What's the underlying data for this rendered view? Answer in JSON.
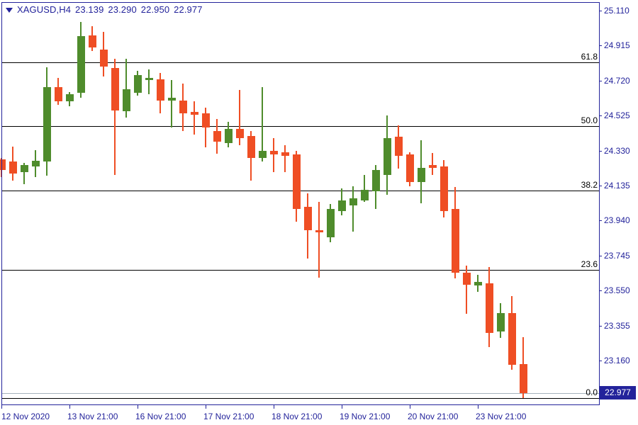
{
  "header": {
    "symbol": "XAGUSD,H4",
    "open": "23.139",
    "high": "23.290",
    "low": "22.950",
    "close": "22.977"
  },
  "colors": {
    "background": "#FFFFFF",
    "bull": "#4F8C2C",
    "bear": "#EF4E24",
    "axis": "#23239B",
    "fib_line": "#000000",
    "bid_line": "#A6B2BC",
    "tag_bg": "#23239B",
    "tag_text": "#FFFFFF"
  },
  "chart_data": {
    "type": "candlestick",
    "symbol": "XAGUSD",
    "timeframe": "H4",
    "title": "XAGUSD,H4 23.139 23.290 22.950 22.977",
    "grid": false,
    "legend_position": "none",
    "y_axis": {
      "side": "right",
      "tick_labels": [
        "25.110",
        "24.915",
        "24.720",
        "24.525",
        "24.330",
        "24.135",
        "23.940",
        "23.745",
        "23.550",
        "23.355",
        "23.160"
      ],
      "range_shown": [
        22.85,
        25.17
      ]
    },
    "x_axis": {
      "tick_labels": [
        "12 Nov 2020",
        "13 Nov 21:00",
        "16 Nov 21:00",
        "17 Nov 21:00",
        "18 Nov 21:00",
        "19 Nov 21:00",
        "20 Nov 21:00",
        "23 Nov 21:00"
      ],
      "ticks": [
        {
          "label": "12 Nov 2020",
          "candle_index": 0
        },
        {
          "label": "13 Nov 21:00",
          "candle_index": 6
        },
        {
          "label": "16 Nov 21:00",
          "candle_index": 12
        },
        {
          "label": "17 Nov 21:00",
          "candle_index": 18
        },
        {
          "label": "18 Nov 21:00",
          "candle_index": 24
        },
        {
          "label": "19 Nov 21:00",
          "candle_index": 30
        },
        {
          "label": "20 Nov 21:00",
          "candle_index": 36
        },
        {
          "label": "23 Nov 21:00",
          "candle_index": 42
        }
      ]
    },
    "fibonacci_levels": [
      {
        "label": "61.8",
        "price": 24.823
      },
      {
        "label": "50.0",
        "price": 24.465
      },
      {
        "label": "38.2",
        "price": 24.108
      },
      {
        "label": "23.6",
        "price": 23.665
      },
      {
        "label": "0.0",
        "price": 22.95
      }
    ],
    "current_price": 22.977,
    "current_price_label": "22.977",
    "candles": [
      {
        "o": 24.281,
        "h": 24.289,
        "l": 24.182,
        "c": 24.222
      },
      {
        "o": 24.269,
        "h": 24.352,
        "l": 24.163,
        "c": 24.202
      },
      {
        "o": 24.21,
        "h": 24.261,
        "l": 24.143,
        "c": 24.25
      },
      {
        "o": 24.242,
        "h": 24.332,
        "l": 24.182,
        "c": 24.273
      },
      {
        "o": 24.269,
        "h": 24.794,
        "l": 24.19,
        "c": 24.684
      },
      {
        "o": 24.684,
        "h": 24.735,
        "l": 24.585,
        "c": 24.605
      },
      {
        "o": 24.605,
        "h": 24.656,
        "l": 24.577,
        "c": 24.644
      },
      {
        "o": 24.652,
        "h": 25.047,
        "l": 24.624,
        "c": 24.968
      },
      {
        "o": 24.972,
        "h": 25.023,
        "l": 24.885,
        "c": 24.905
      },
      {
        "o": 24.893,
        "h": 24.992,
        "l": 24.743,
        "c": 24.798
      },
      {
        "o": 24.79,
        "h": 24.842,
        "l": 24.194,
        "c": 24.553
      },
      {
        "o": 24.549,
        "h": 24.842,
        "l": 24.514,
        "c": 24.672
      },
      {
        "o": 24.652,
        "h": 24.775,
        "l": 24.636,
        "c": 24.751
      },
      {
        "o": 24.723,
        "h": 24.782,
        "l": 24.644,
        "c": 24.735
      },
      {
        "o": 24.727,
        "h": 24.763,
        "l": 24.538,
        "c": 24.609
      },
      {
        "o": 24.609,
        "h": 24.723,
        "l": 24.459,
        "c": 24.624
      },
      {
        "o": 24.609,
        "h": 24.703,
        "l": 24.439,
        "c": 24.538
      },
      {
        "o": 24.546,
        "h": 24.605,
        "l": 24.419,
        "c": 24.53
      },
      {
        "o": 24.538,
        "h": 24.569,
        "l": 24.348,
        "c": 24.459
      },
      {
        "o": 24.439,
        "h": 24.506,
        "l": 24.313,
        "c": 24.38
      },
      {
        "o": 24.372,
        "h": 24.49,
        "l": 24.348,
        "c": 24.451
      },
      {
        "o": 24.451,
        "h": 24.668,
        "l": 24.36,
        "c": 24.399
      },
      {
        "o": 24.411,
        "h": 24.439,
        "l": 24.163,
        "c": 24.289
      },
      {
        "o": 24.289,
        "h": 24.684,
        "l": 24.269,
        "c": 24.328
      },
      {
        "o": 24.328,
        "h": 24.399,
        "l": 24.21,
        "c": 24.309
      },
      {
        "o": 24.32,
        "h": 24.36,
        "l": 24.21,
        "c": 24.301
      },
      {
        "o": 24.309,
        "h": 24.328,
        "l": 23.934,
        "c": 24.005
      },
      {
        "o": 24.017,
        "h": 24.092,
        "l": 23.728,
        "c": 23.886
      },
      {
        "o": 23.886,
        "h": 24.044,
        "l": 23.621,
        "c": 23.874
      },
      {
        "o": 23.847,
        "h": 24.032,
        "l": 23.819,
        "c": 24.005
      },
      {
        "o": 23.993,
        "h": 24.119,
        "l": 23.969,
        "c": 24.052
      },
      {
        "o": 24.025,
        "h": 24.131,
        "l": 23.878,
        "c": 24.064
      },
      {
        "o": 24.052,
        "h": 24.194,
        "l": 24.044,
        "c": 24.111
      },
      {
        "o": 24.103,
        "h": 24.25,
        "l": 24.005,
        "c": 24.222
      },
      {
        "o": 24.194,
        "h": 24.526,
        "l": 24.084,
        "c": 24.399
      },
      {
        "o": 24.407,
        "h": 24.47,
        "l": 24.23,
        "c": 24.301
      },
      {
        "o": 24.309,
        "h": 24.32,
        "l": 24.131,
        "c": 24.155
      },
      {
        "o": 24.155,
        "h": 24.388,
        "l": 24.036,
        "c": 24.234
      },
      {
        "o": 24.25,
        "h": 24.316,
        "l": 24.194,
        "c": 24.234
      },
      {
        "o": 24.242,
        "h": 24.277,
        "l": 23.957,
        "c": 23.993
      },
      {
        "o": 24.005,
        "h": 24.127,
        "l": 23.617,
        "c": 23.649
      },
      {
        "o": 23.649,
        "h": 23.689,
        "l": 23.42,
        "c": 23.582
      },
      {
        "o": 23.578,
        "h": 23.637,
        "l": 23.543,
        "c": 23.598
      },
      {
        "o": 23.59,
        "h": 23.681,
        "l": 23.235,
        "c": 23.314
      },
      {
        "o": 23.322,
        "h": 23.48,
        "l": 23.286,
        "c": 23.424
      },
      {
        "o": 23.424,
        "h": 23.519,
        "l": 23.109,
        "c": 23.136
      },
      {
        "o": 23.139,
        "h": 23.29,
        "l": 22.95,
        "c": 22.977
      }
    ]
  }
}
